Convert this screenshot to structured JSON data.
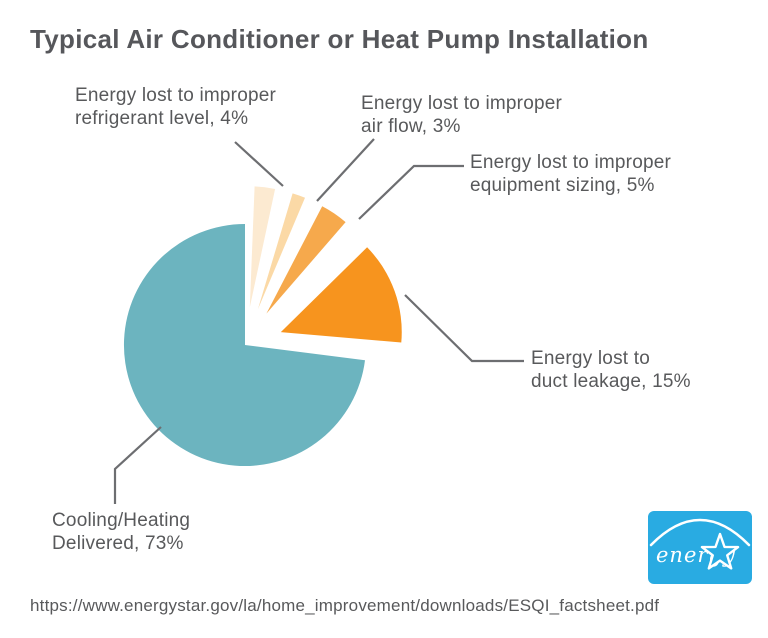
{
  "title": {
    "text": "Typical Air Conditioner or Heat Pump Installation",
    "color": "#56575B"
  },
  "chart_data": {
    "type": "pie",
    "title": "Typical Air Conditioner or Heat Pump Installation",
    "unit": "percent",
    "total": 100,
    "start_angle_deg": 90,
    "direction": "clockwise",
    "legend_position": "callout-labels",
    "slices": [
      {
        "label": "Energy lost to improper refrigerant level",
        "value": 4,
        "color": "#FCEAD1",
        "exploded": true
      },
      {
        "label": "Energy lost to improper air flow",
        "value": 3,
        "color": "#FBD9A6",
        "exploded": true
      },
      {
        "label": "Energy lost to improper equipment sizing",
        "value": 5,
        "color": "#F6A94C",
        "exploded": true
      },
      {
        "label": "Energy lost to duct leakage",
        "value": 15,
        "color": "#F7941E",
        "exploded": true
      },
      {
        "label": "Cooling/Heating Delivered",
        "value": 73,
        "color": "#6CB4BF",
        "exploded": false
      }
    ]
  },
  "callouts": {
    "refrigerant": {
      "line1": "Energy lost to improper",
      "line2": "refrigerant level, 4%"
    },
    "airflow": {
      "line1": "Energy lost to improper",
      "line2": "air flow, 3%"
    },
    "sizing": {
      "line1": "Energy lost to improper",
      "line2": "equipment sizing, 5%"
    },
    "duct": {
      "line1": "Energy lost to",
      "line2": "duct leakage, 15%"
    },
    "cooling": {
      "line1": "Cooling/Heating",
      "line2": "Delivered, 73%"
    }
  },
  "logo": {
    "name": "ENERGY STAR",
    "script_text": "energy",
    "background_color": "#29ABE2"
  },
  "footer": {
    "source_url": "https://www.energystar.gov/la/home_improvement/downloads/ESQI_factsheet.pdf"
  },
  "colors": {
    "text": "#58595B",
    "leader_line": "#6D6E71"
  }
}
